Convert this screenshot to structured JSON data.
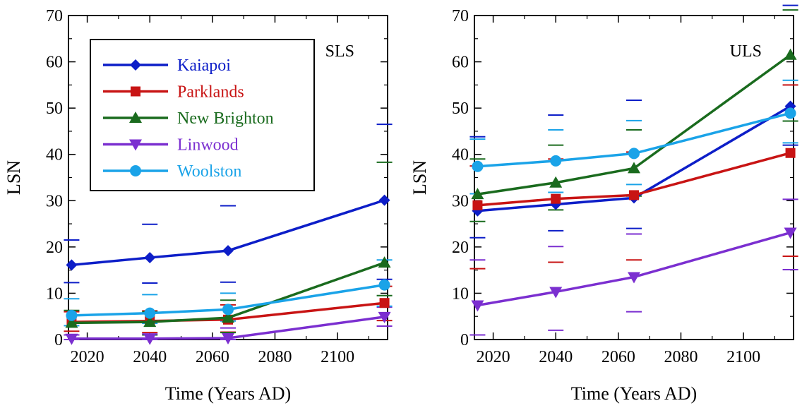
{
  "chart_data": [
    {
      "type": "line",
      "label": "SLS",
      "xlabel": "Time (Years AD)",
      "ylabel": "LSN",
      "xlim": [
        2014,
        2116
      ],
      "ylim": [
        0,
        70
      ],
      "xticks": [
        2020,
        2040,
        2060,
        2080,
        2100
      ],
      "xtick_labels": [
        "2020",
        "2040",
        "2060",
        "2080",
        "2100"
      ],
      "yticks": [
        0,
        10,
        20,
        30,
        40,
        50,
        60,
        70
      ],
      "ytick_labels": [
        "0",
        "10",
        "20",
        "30",
        "40",
        "50",
        "60",
        "70"
      ],
      "x": [
        2015,
        2040,
        2065,
        2115
      ],
      "legend_position": "top-left",
      "series": [
        {
          "name": "Kaiapoi",
          "color": "#0d1ec8",
          "marker": "diamond",
          "values": [
            16.1,
            17.7,
            19.2,
            30.1
          ],
          "ranges": [
            [
              12.3,
              21.5
            ],
            [
              12.2,
              24.9
            ],
            [
              12.4,
              28.9
            ],
            [
              13.0,
              46.5
            ]
          ]
        },
        {
          "name": "Parklands",
          "color": "#c81414",
          "marker": "square",
          "values": [
            3.8,
            4.0,
            4.3,
            7.9
          ],
          "ranges": [
            [
              1.8,
              6.0
            ],
            [
              1.5,
              6.2
            ],
            [
              1.6,
              7.5
            ],
            [
              4.1,
              11.5
            ]
          ]
        },
        {
          "name": "New Brighton",
          "color": "#1a6b1e",
          "marker": "triangle-up",
          "values": [
            3.6,
            3.8,
            4.7,
            16.6
          ],
          "ranges": [
            [
              1.0,
              6.3
            ],
            [
              1.0,
              6.0
            ],
            [
              1.5,
              8.5
            ],
            [
              9.5,
              38.3
            ]
          ]
        },
        {
          "name": "Linwood",
          "color": "#7b2fd0",
          "marker": "triangle-down",
          "values": [
            0.2,
            0.2,
            0.3,
            4.9
          ],
          "ranges": [
            [
              0.0,
              1.0
            ],
            [
              0.0,
              1.2
            ],
            [
              0.0,
              2.5
            ],
            [
              2.9,
              7.0
            ]
          ]
        },
        {
          "name": "Woolston",
          "color": "#1aa3e8",
          "marker": "circle",
          "values": [
            5.2,
            5.7,
            6.5,
            11.8
          ],
          "ranges": [
            [
              3.0,
              8.8
            ],
            [
              3.5,
              9.7
            ],
            [
              4.0,
              10.0
            ],
            [
              7.2,
              17.2
            ]
          ]
        }
      ]
    },
    {
      "type": "line",
      "label": "ULS",
      "xlabel": "Time (Years AD)",
      "ylabel": "LSN",
      "xlim": [
        2014,
        2116
      ],
      "ylim": [
        0,
        70
      ],
      "xticks": [
        2020,
        2040,
        2060,
        2080,
        2100
      ],
      "xtick_labels": [
        "2020",
        "2040",
        "2060",
        "2080",
        "2100"
      ],
      "yticks": [
        0,
        10,
        20,
        30,
        40,
        50,
        60,
        70
      ],
      "ytick_labels": [
        "0",
        "10",
        "20",
        "30",
        "40",
        "50",
        "60",
        "70"
      ],
      "x": [
        2015,
        2040,
        2065,
        2115
      ],
      "series": [
        {
          "name": "Kaiapoi",
          "color": "#0d1ec8",
          "marker": "diamond",
          "values": [
            27.8,
            29.2,
            30.6,
            50.4
          ],
          "ranges": [
            [
              22.0,
              43.8
            ],
            [
              23.5,
              48.5
            ],
            [
              24.0,
              51.7
            ],
            [
              42.0,
              72.2
            ]
          ]
        },
        {
          "name": "Parklands",
          "color": "#c81414",
          "marker": "square",
          "values": [
            29.0,
            30.4,
            31.2,
            40.3
          ],
          "ranges": [
            [
              15.3,
              37.5
            ],
            [
              16.7,
              39.0
            ],
            [
              17.2,
              40.5
            ],
            [
              18.0,
              55.0
            ]
          ]
        },
        {
          "name": "New Brighton",
          "color": "#1a6b1e",
          "marker": "triangle-up",
          "values": [
            31.4,
            33.9,
            37.0,
            61.5
          ],
          "ranges": [
            [
              25.5,
              39.0
            ],
            [
              28.0,
              42.0
            ],
            [
              31.0,
              45.3
            ],
            [
              47.2,
              71.2
            ]
          ]
        },
        {
          "name": "Linwood",
          "color": "#7b2fd0",
          "marker": "triangle-down",
          "values": [
            7.4,
            10.3,
            13.5,
            23.1
          ],
          "ranges": [
            [
              1.0,
              17.2
            ],
            [
              2.0,
              20.1
            ],
            [
              6.0,
              22.8
            ],
            [
              15.1,
              30.3
            ]
          ]
        },
        {
          "name": "Woolston",
          "color": "#1aa3e8",
          "marker": "circle",
          "values": [
            37.4,
            38.6,
            40.2,
            48.9
          ],
          "ranges": [
            [
              31.5,
              43.3
            ],
            [
              31.8,
              45.3
            ],
            [
              33.5,
              47.3
            ],
            [
              42.5,
              56.0
            ]
          ]
        }
      ]
    }
  ]
}
